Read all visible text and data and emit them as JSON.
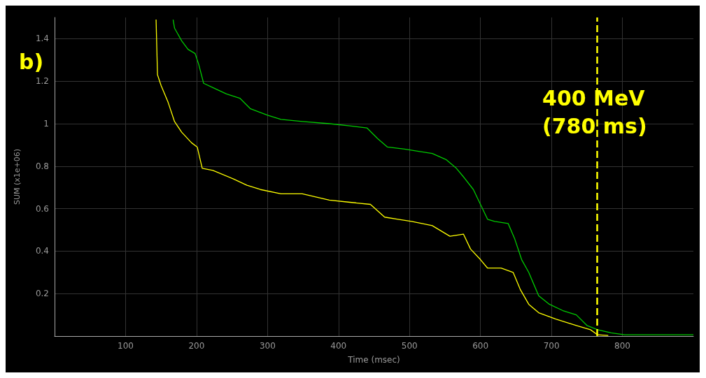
{
  "chart_data": {
    "type": "line",
    "title": "b)",
    "xlabel": "Time (msec)",
    "ylabel": "SUM (x1e+06)",
    "xlim": [
      0,
      900
    ],
    "ylim": [
      0,
      1.5
    ],
    "xticks": [
      100,
      200,
      300,
      400,
      500,
      600,
      700,
      800
    ],
    "yticks": [
      0.2,
      0.4,
      0.6,
      0.8,
      1,
      1.2,
      1.4
    ],
    "grid": true,
    "tick_labels": "xy",
    "series": [
      {
        "color": "#00cc00",
        "x": [
          167,
          169,
          179,
          188,
          198,
          203,
          210,
          223,
          242,
          261,
          276,
          300,
          319,
          349,
          387,
          416,
          440,
          455,
          469,
          493,
          513,
          532,
          552,
          566,
          576,
          590,
          600,
          610,
          620,
          639,
          648,
          658,
          668,
          682,
          697,
          716,
          735,
          750,
          765,
          784,
          803,
          852,
          900
        ],
        "values": [
          1.49,
          1.45,
          1.39,
          1.35,
          1.33,
          1.28,
          1.19,
          1.17,
          1.14,
          1.12,
          1.07,
          1.04,
          1.02,
          1.01,
          1.0,
          0.99,
          0.98,
          0.93,
          0.89,
          0.88,
          0.87,
          0.86,
          0.83,
          0.79,
          0.75,
          0.69,
          0.62,
          0.55,
          0.54,
          0.53,
          0.46,
          0.36,
          0.3,
          0.19,
          0.15,
          0.12,
          0.1,
          0.05,
          0.03,
          0.015,
          0.006,
          0.006,
          0.006
        ]
      },
      {
        "color": "#ffff00",
        "x": [
          143,
          145,
          150,
          160,
          169,
          179,
          193,
          201,
          208,
          223,
          252,
          271,
          290,
          319,
          349,
          387,
          416,
          445,
          465,
          484,
          503,
          532,
          557,
          576,
          586,
          600,
          610,
          629,
          646,
          656,
          668,
          682,
          706,
          735,
          755,
          765,
          780
        ],
        "values": [
          1.49,
          1.23,
          1.18,
          1.1,
          1.01,
          0.96,
          0.91,
          0.89,
          0.79,
          0.78,
          0.74,
          0.71,
          0.69,
          0.67,
          0.67,
          0.64,
          0.63,
          0.62,
          0.56,
          0.55,
          0.54,
          0.52,
          0.47,
          0.48,
          0.41,
          0.36,
          0.32,
          0.32,
          0.3,
          0.22,
          0.15,
          0.11,
          0.08,
          0.05,
          0.03,
          0.006,
          0.003
        ]
      }
    ],
    "ref_lines": [
      {
        "axis": "x",
        "value": 764,
        "label": "400 MeV (780 ms)",
        "color": "#ffff00",
        "line_style": "dashed"
      }
    ]
  }
}
